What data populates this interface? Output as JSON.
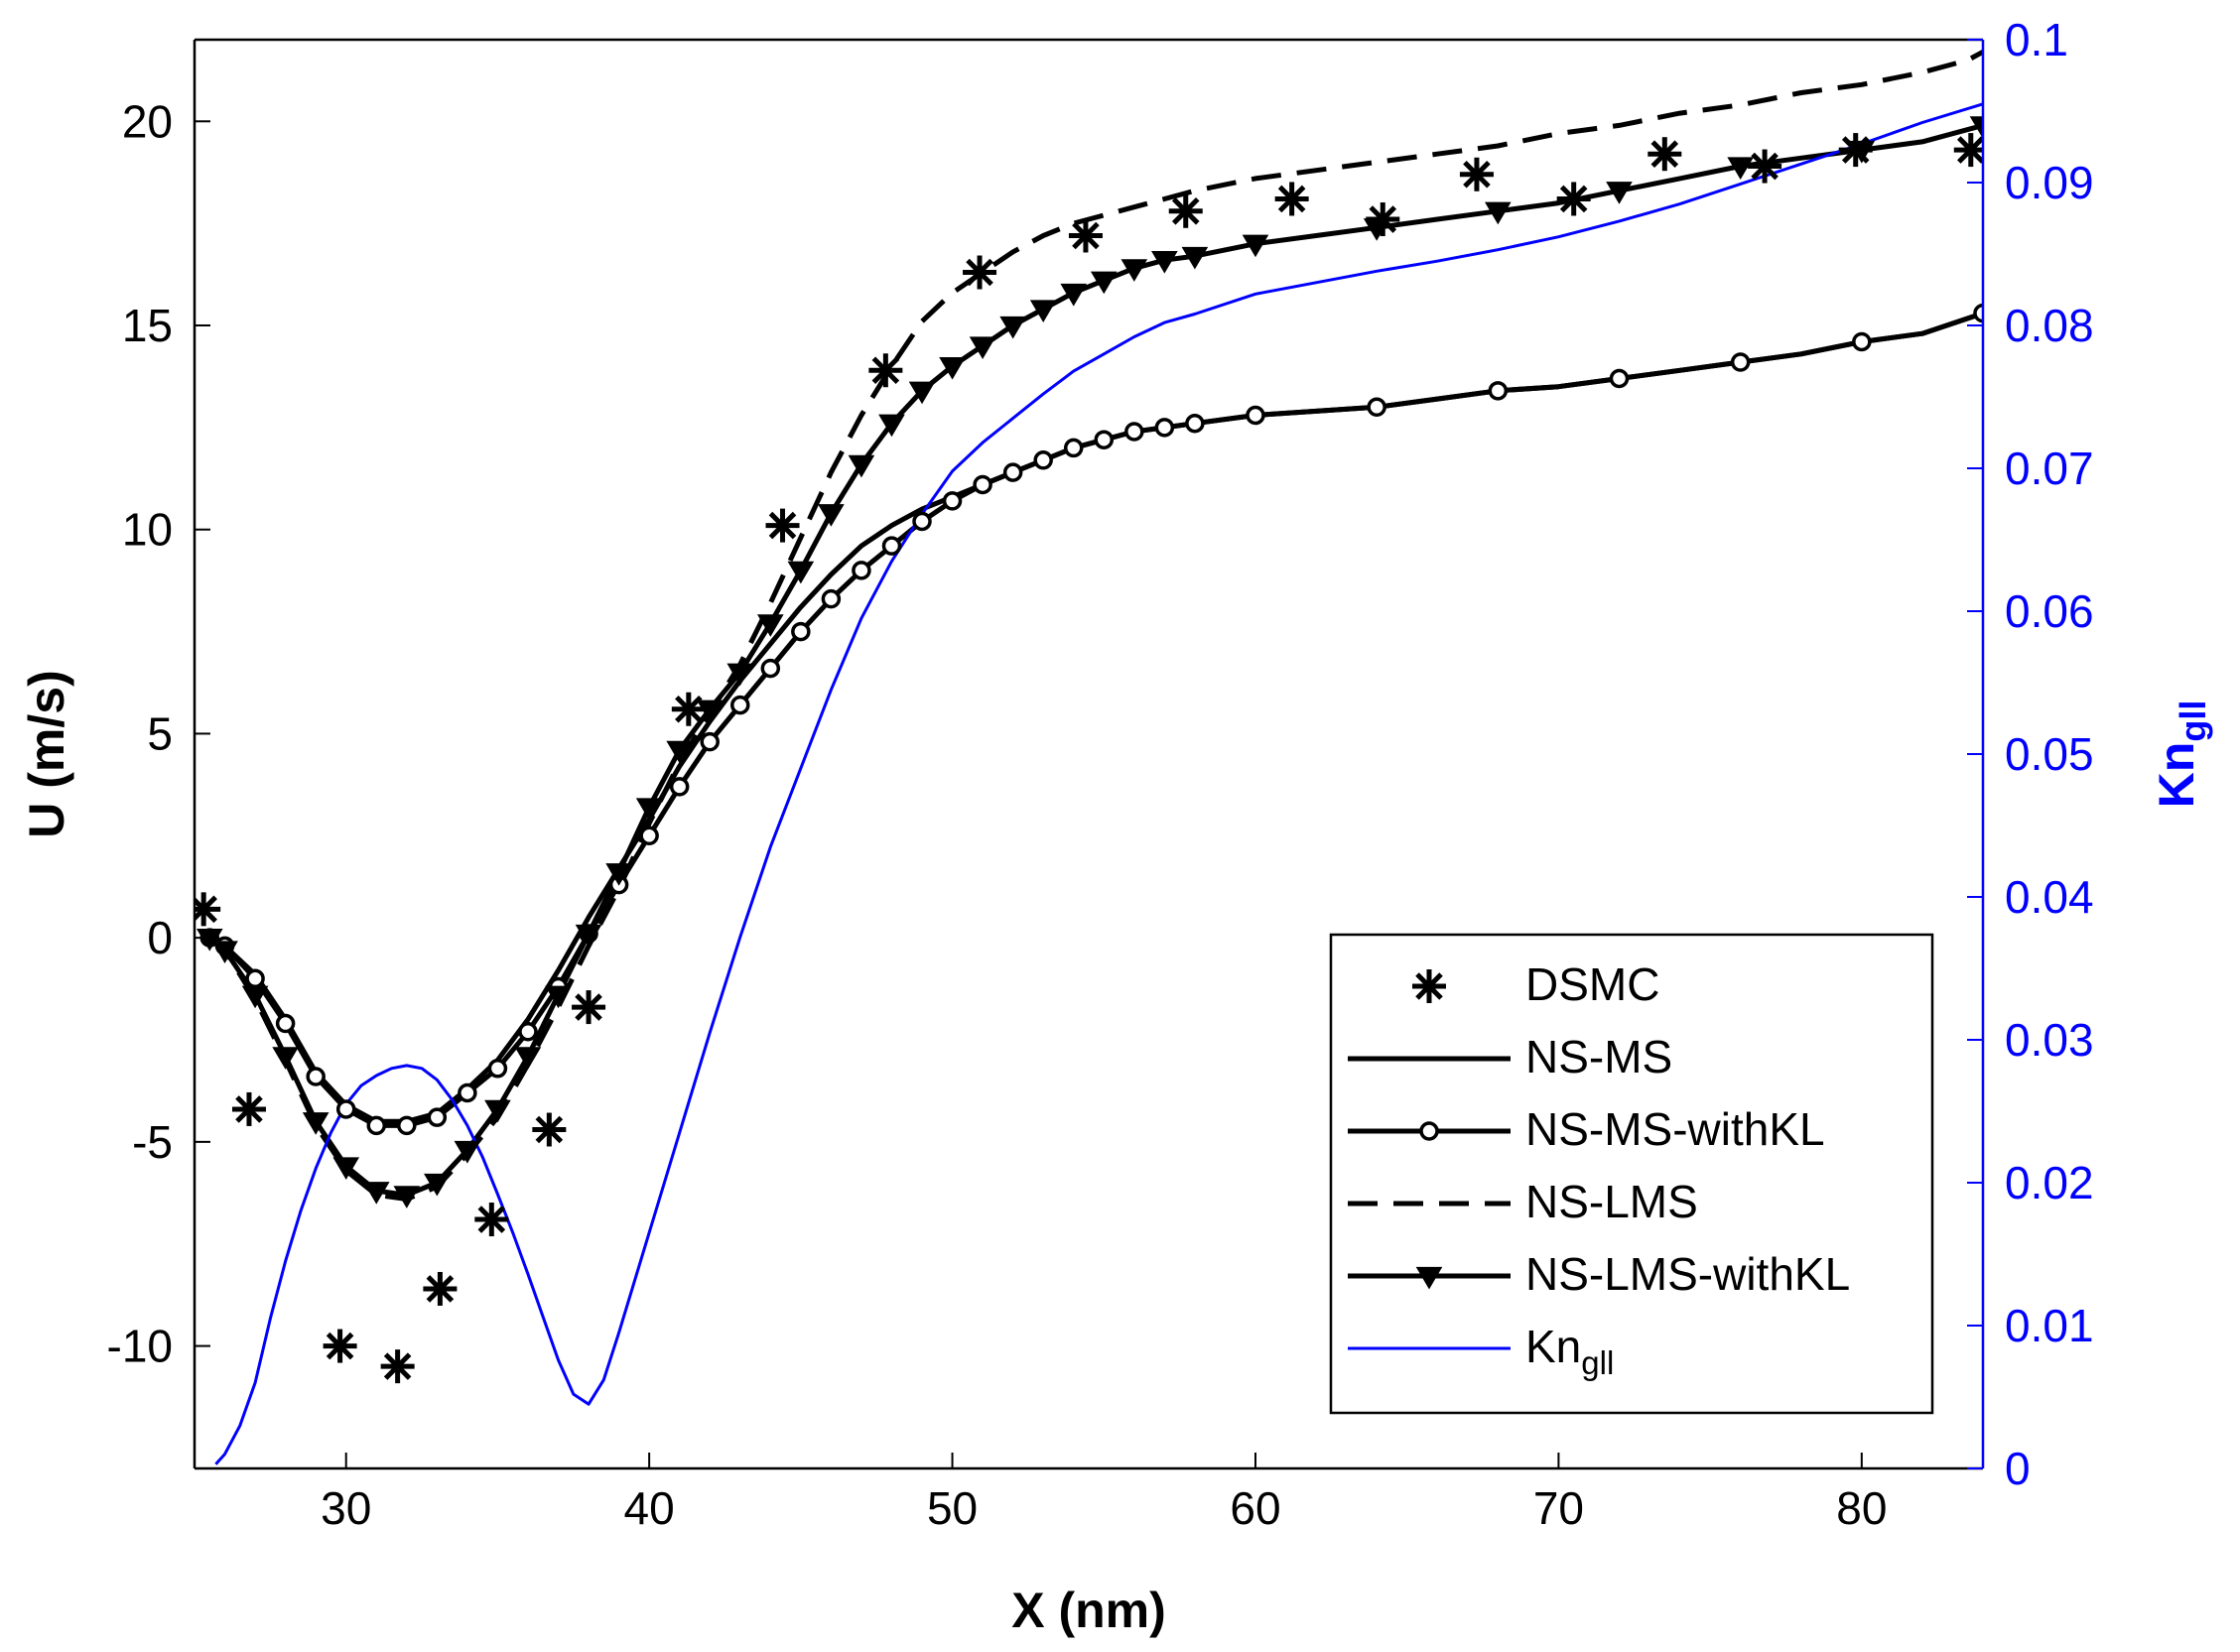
{
  "chart_data": {
    "type": "line",
    "xlabel": "X (nm)",
    "ylabel": "U (m/s)",
    "y2label": {
      "main": "Kn",
      "sub": "gll"
    },
    "xlim": [
      25,
      84
    ],
    "ylim": [
      -13,
      22
    ],
    "y2lim": [
      0,
      0.1
    ],
    "xticks": [
      30,
      40,
      50,
      60,
      70,
      80
    ],
    "yticks": [
      -10,
      -5,
      0,
      5,
      10,
      15,
      20
    ],
    "y2ticks": [
      0,
      0.01,
      0.02,
      0.03,
      0.04,
      0.05,
      0.06,
      0.07,
      0.08,
      0.09,
      0.1
    ],
    "xtick_labels": [
      "30",
      "40",
      "50",
      "60",
      "70",
      "80"
    ],
    "ytick_labels": [
      "-10",
      "-5",
      "0",
      "5",
      "10",
      "15",
      "20"
    ],
    "y2tick_labels": [
      "0",
      "0.01",
      "0.02",
      "0.03",
      "0.04",
      "0.05",
      "0.06",
      "0.07",
      "0.08",
      "0.09",
      "0.1"
    ],
    "grid": false,
    "legend_position": "lower-right",
    "colors": {
      "black": "#000000",
      "blue": "#0000ff"
    },
    "series": [
      {
        "name": "DSMC",
        "axis": "left",
        "style": "markers",
        "marker": "asterisk",
        "x": [
          25.3,
          26.8,
          29.8,
          31.7,
          33.1,
          34.8,
          36.7,
          38.0,
          41.3,
          44.4,
          47.8,
          50.9,
          54.4,
          57.7,
          61.2,
          64.2,
          67.3,
          70.5,
          73.5,
          76.8,
          79.8,
          83.6
        ],
        "y": [
          0.7,
          -4.2,
          -10.0,
          -10.5,
          -8.6,
          -6.9,
          -4.7,
          -1.7,
          5.6,
          10.1,
          13.9,
          16.3,
          17.2,
          17.8,
          18.1,
          17.6,
          18.7,
          18.1,
          19.2,
          18.9,
          19.3,
          19.3
        ]
      },
      {
        "name": "NS-MS",
        "axis": "left",
        "style": "solid",
        "x": [
          25.5,
          26,
          27,
          28,
          29,
          30,
          31,
          32,
          33,
          34,
          35,
          36,
          37,
          38,
          39,
          40,
          41,
          42,
          43,
          44,
          45,
          46,
          47,
          48,
          49,
          50,
          51,
          52,
          53,
          54,
          55,
          56,
          57,
          58,
          60,
          62,
          64,
          66,
          68,
          70,
          72,
          74,
          76,
          78,
          80,
          82,
          84
        ],
        "y": [
          0.0,
          -0.2,
          -0.9,
          -2.0,
          -3.3,
          -4.1,
          -4.5,
          -4.5,
          -4.3,
          -3.7,
          -3.0,
          -2.0,
          -0.8,
          0.5,
          1.7,
          2.9,
          4.2,
          5.3,
          6.3,
          7.2,
          8.1,
          8.9,
          9.6,
          10.1,
          10.5,
          10.8,
          11.1,
          11.4,
          11.7,
          12.0,
          12.2,
          12.4,
          12.5,
          12.6,
          12.8,
          12.9,
          13.0,
          13.2,
          13.4,
          13.5,
          13.7,
          13.9,
          14.1,
          14.3,
          14.6,
          14.8,
          15.3
        ]
      },
      {
        "name": "NS-MS-withKL",
        "axis": "left",
        "style": "solid",
        "marker": "circle",
        "x": [
          25.5,
          26,
          27,
          28,
          29,
          30,
          31,
          32,
          33,
          34,
          35,
          36,
          37,
          38,
          39,
          40,
          41,
          42,
          43,
          44,
          45,
          46,
          47,
          48,
          49,
          50,
          51,
          52,
          53,
          54,
          55,
          56,
          57,
          58,
          60,
          62,
          64,
          66,
          68,
          70,
          72,
          74,
          76,
          78,
          80,
          82,
          84
        ],
        "y": [
          0.0,
          -0.2,
          -1.0,
          -2.1,
          -3.4,
          -4.2,
          -4.6,
          -4.6,
          -4.4,
          -3.8,
          -3.2,
          -2.3,
          -1.2,
          0.1,
          1.3,
          2.5,
          3.7,
          4.8,
          5.7,
          6.6,
          7.5,
          8.3,
          9.0,
          9.6,
          10.2,
          10.7,
          11.1,
          11.4,
          11.7,
          12.0,
          12.2,
          12.4,
          12.5,
          12.6,
          12.8,
          12.9,
          13.0,
          13.2,
          13.4,
          13.5,
          13.7,
          13.9,
          14.1,
          14.3,
          14.6,
          14.8,
          15.3
        ]
      },
      {
        "name": "NS-LMS",
        "axis": "left",
        "style": "dashed",
        "x": [
          25.5,
          26,
          27,
          28,
          29,
          30,
          31,
          32,
          33,
          34,
          35,
          36,
          37,
          38,
          39,
          40,
          41,
          42,
          43,
          44,
          45,
          46,
          47,
          48,
          49,
          50,
          51,
          52,
          53,
          54,
          55,
          56,
          57,
          58,
          60,
          62,
          64,
          66,
          68,
          70,
          72,
          74,
          76,
          78,
          80,
          82,
          83.5,
          84
        ],
        "y": [
          0.0,
          -0.3,
          -1.5,
          -3.0,
          -4.6,
          -5.7,
          -6.3,
          -6.4,
          -6.1,
          -5.3,
          -4.4,
          -3.1,
          -1.7,
          -0.2,
          1.2,
          2.8,
          4.3,
          5.5,
          6.7,
          8.2,
          9.8,
          11.4,
          12.8,
          14.0,
          15.1,
          15.8,
          16.3,
          16.8,
          17.2,
          17.5,
          17.7,
          17.9,
          18.1,
          18.3,
          18.6,
          18.8,
          19.0,
          19.2,
          19.4,
          19.7,
          19.9,
          20.2,
          20.4,
          20.7,
          20.9,
          21.2,
          21.5,
          21.7
        ]
      },
      {
        "name": "NS-LMS-withKL",
        "axis": "left",
        "style": "solid",
        "marker": "triangle-down",
        "x": [
          25.5,
          26,
          27,
          28,
          29,
          30,
          31,
          32,
          33,
          34,
          35,
          36,
          37,
          38,
          39,
          40,
          41,
          42,
          43,
          44,
          45,
          46,
          47,
          48,
          49,
          50,
          51,
          52,
          53,
          54,
          55,
          56,
          57,
          58,
          60,
          62,
          64,
          66,
          68,
          70,
          72,
          74,
          76,
          78,
          80,
          82,
          84
        ],
        "y": [
          0.0,
          -0.3,
          -1.4,
          -2.9,
          -4.5,
          -5.6,
          -6.2,
          -6.3,
          -6.0,
          -5.2,
          -4.2,
          -2.9,
          -1.4,
          0.1,
          1.6,
          3.2,
          4.6,
          5.6,
          6.5,
          7.7,
          9.0,
          10.4,
          11.6,
          12.6,
          13.4,
          14.0,
          14.5,
          15.0,
          15.4,
          15.8,
          16.1,
          16.4,
          16.6,
          16.7,
          17.0,
          17.2,
          17.4,
          17.6,
          17.8,
          18.0,
          18.3,
          18.6,
          18.9,
          19.1,
          19.3,
          19.5,
          19.9
        ]
      },
      {
        "name": "Kn_gll",
        "legend_label": {
          "main": "Kn",
          "sub": "gll"
        },
        "axis": "right",
        "style": "solid",
        "color": "#0000ff",
        "x": [
          25.7,
          26,
          26.5,
          27,
          27.5,
          28,
          28.5,
          29,
          29.5,
          30,
          30.5,
          31,
          31.5,
          32,
          32.5,
          33,
          33.5,
          34,
          34.5,
          35,
          35.5,
          36,
          36.5,
          37,
          37.5,
          38,
          38.5,
          39,
          40,
          41,
          42,
          43,
          44,
          45,
          46,
          47,
          48,
          49,
          50,
          51,
          52,
          53,
          54,
          55,
          56,
          57,
          58,
          60,
          62,
          64,
          66,
          68,
          70,
          72,
          74,
          76,
          78,
          80,
          82,
          84
        ],
        "y": [
          0.0003,
          0.001,
          0.003,
          0.006,
          0.0105,
          0.0145,
          0.018,
          0.021,
          0.0235,
          0.0255,
          0.0268,
          0.0275,
          0.028,
          0.0282,
          0.028,
          0.0272,
          0.0258,
          0.024,
          0.0218,
          0.0192,
          0.0165,
          0.0136,
          0.0106,
          0.0076,
          0.0052,
          0.0045,
          0.0062,
          0.0095,
          0.0165,
          0.0235,
          0.0305,
          0.0372,
          0.0435,
          0.049,
          0.0545,
          0.0595,
          0.0635,
          0.0668,
          0.0698,
          0.0718,
          0.0735,
          0.0752,
          0.0768,
          0.078,
          0.0792,
          0.0802,
          0.0808,
          0.0822,
          0.083,
          0.0838,
          0.0845,
          0.0853,
          0.0862,
          0.0873,
          0.0885,
          0.0899,
          0.0913,
          0.0927,
          0.0942,
          0.0955
        ]
      }
    ]
  }
}
